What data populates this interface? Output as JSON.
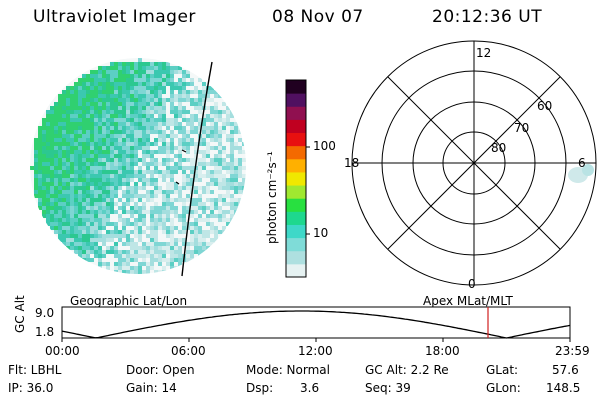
{
  "header": {
    "title": "Ultraviolet Imager",
    "date": "08 Nov 07",
    "time": "20:12:36 UT"
  },
  "colorbar": {
    "label": "photon cm⁻²s⁻¹",
    "ticks": [
      "100",
      "10"
    ],
    "colors": [
      "#e6f2f2",
      "#aee0e0",
      "#7fdcd8",
      "#3ed8c8",
      "#1ed88e",
      "#28e040",
      "#a0e830",
      "#f0e800",
      "#ffb000",
      "#f46a00",
      "#e81010",
      "#c00020",
      "#901050",
      "#501060",
      "#200020"
    ]
  },
  "polar": {
    "lat_labels": [
      "60",
      "70",
      "80"
    ],
    "mlt_labels": {
      "top": "12",
      "left": "18",
      "right": "6",
      "bottom": "0"
    }
  },
  "timeline": {
    "title_left": "Geographic Lat/Lon",
    "title_right": "Apex MLat/MLT",
    "axis_label": "GC Alt",
    "y_ticks": [
      "9.0",
      "1.8"
    ],
    "x_ticks": [
      "00:00",
      "06:00",
      "12:00",
      "18:00",
      "23:59"
    ],
    "current_marker_color": "#d02020"
  },
  "status": {
    "flt": "Flt: LBHL",
    "ip": "IP: 36.0",
    "door": "Door: Open",
    "gain": "Gain: 14",
    "mode": "Mode: Normal",
    "dsp_label": "Dsp:",
    "dsp_value": "3.6",
    "gc_alt": "GC Alt: 2.2 Re",
    "seq": "Seq: 39",
    "glat_label": "GLat:",
    "glat_value": "57.6",
    "glon_label": "GLon:",
    "glon_value": "148.5"
  }
}
